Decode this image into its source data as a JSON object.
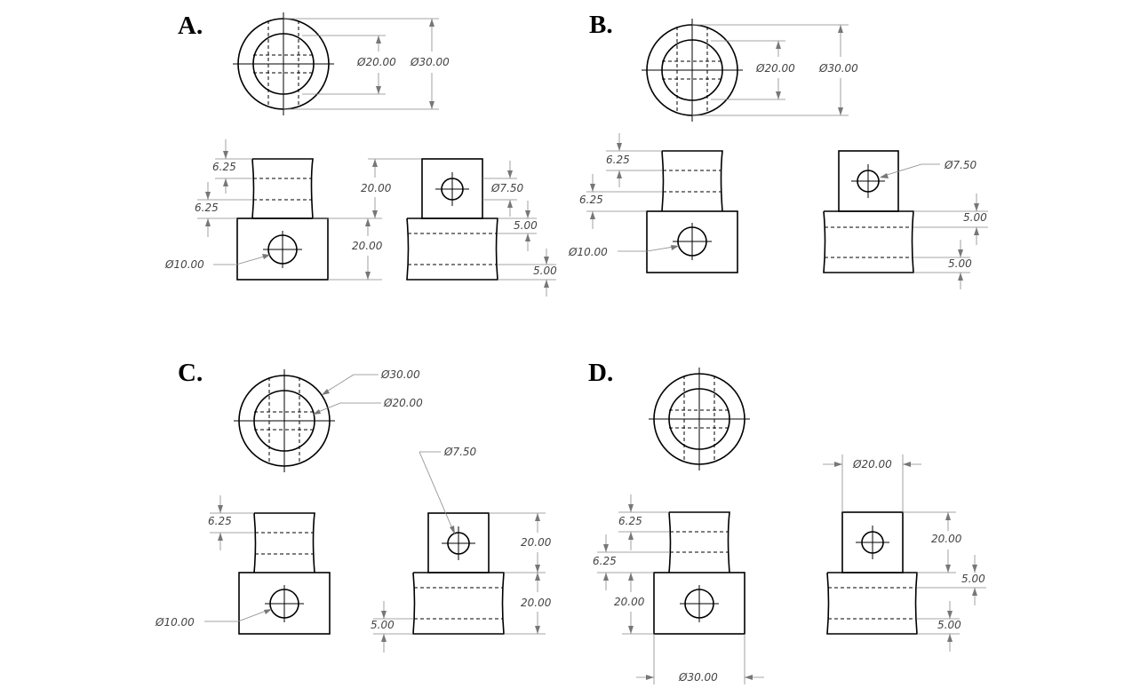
{
  "panels": {
    "a": {
      "label": "A.",
      "top_outer": "Ø30.00",
      "top_inner": "Ø20.00",
      "left_upper": "6.25",
      "left_lower": "6.25",
      "hole_front": "Ø10.00",
      "mid_upper": "20.00",
      "mid_lower": "20.00",
      "side_hole": "Ø7.50",
      "side_upper": "5.00",
      "side_lower": "5.00"
    },
    "b": {
      "label": "B.",
      "top_inner": "Ø20.00",
      "top_outer": "Ø30.00",
      "left_upper": "6.25",
      "left_lower": "6.25",
      "hole_front": "Ø10.00",
      "side_hole": "Ø7.50",
      "side_upper": "5.00",
      "side_lower": "5.00"
    },
    "c": {
      "label": "C.",
      "top_outer": "Ø30.00",
      "top_inner": "Ø20.00",
      "left_upper": "6.25",
      "hole_front": "Ø10.00",
      "side_hole": "Ø7.50",
      "right_upper": "20.00",
      "right_lower": "20.00",
      "side_bottom": "5.00"
    },
    "d": {
      "label": "D.",
      "left_upper": "6.25",
      "left_lower": "6.25",
      "front_height": "20.00",
      "front_width": "Ø30.00",
      "side_width": "Ø20.00",
      "right_upper": "20.00",
      "side_upper": "5.00",
      "side_lower": "5.00"
    }
  }
}
